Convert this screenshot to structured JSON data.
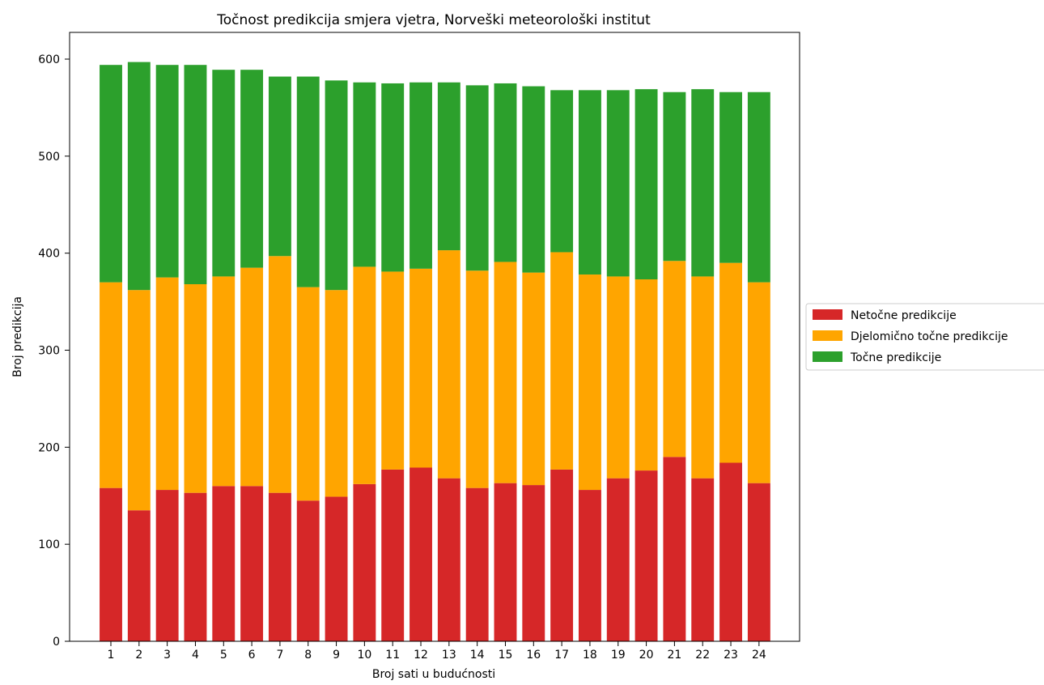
{
  "chart_data": {
    "type": "bar",
    "stacked": true,
    "title": "Točnost predikcija smjera vjetra, Norveški meteorološki institut",
    "xlabel": "Broj sati u budućnosti",
    "ylabel": "Broj predikcija",
    "ylim": [
      0,
      625
    ],
    "yticks": [
      "0",
      "100",
      "200",
      "300",
      "400",
      "500",
      "600"
    ],
    "categories": [
      "1",
      "2",
      "3",
      "4",
      "5",
      "6",
      "7",
      "8",
      "9",
      "10",
      "11",
      "12",
      "13",
      "14",
      "15",
      "16",
      "17",
      "18",
      "19",
      "20",
      "21",
      "22",
      "23",
      "24"
    ],
    "legend_position": "right",
    "series": [
      {
        "name": "Netočne predikcije",
        "color": "#d62728",
        "values": [
          158,
          135,
          156,
          153,
          160,
          160,
          153,
          145,
          149,
          162,
          177,
          179,
          168,
          158,
          163,
          161,
          177,
          156,
          168,
          176,
          190,
          168,
          184,
          163
        ]
      },
      {
        "name": "Djelomično točne predikcije",
        "color": "#ffa500",
        "values": [
          212,
          227,
          219,
          215,
          216,
          225,
          244,
          220,
          213,
          224,
          204,
          205,
          235,
          224,
          228,
          219,
          224,
          222,
          208,
          197,
          202,
          208,
          206,
          207
        ]
      },
      {
        "name": "Točne predikcije",
        "color": "#2ca02c",
        "values": [
          224,
          235,
          219,
          226,
          213,
          204,
          185,
          217,
          216,
          190,
          194,
          192,
          173,
          191,
          184,
          192,
          167,
          190,
          192,
          196,
          174,
          193,
          176,
          196
        ]
      }
    ]
  }
}
